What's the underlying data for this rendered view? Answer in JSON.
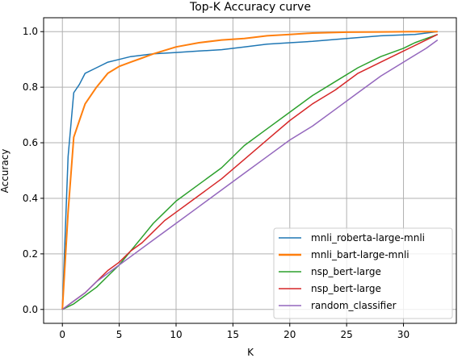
{
  "chart_data": {
    "type": "line",
    "title": "Top-K Accuracy curve",
    "xlabel": "K",
    "ylabel": "Accuracy",
    "xlim": [
      -1.65,
      34.65
    ],
    "ylim": [
      -0.05,
      1.05
    ],
    "xticks": [
      0,
      5,
      10,
      15,
      20,
      25,
      30
    ],
    "yticks": [
      0.0,
      0.2,
      0.4,
      0.6,
      0.8,
      1.0
    ],
    "xtick_labels": [
      "0",
      "5",
      "10",
      "15",
      "20",
      "25",
      "30"
    ],
    "ytick_labels": [
      "0.0",
      "0.2",
      "0.4",
      "0.6",
      "0.8",
      "1.0"
    ],
    "grid": true,
    "legend_position": "lower-right",
    "series": [
      {
        "name": "mnli_roberta-large-mnli",
        "color": "#1f77b4",
        "x": [
          0,
          0.5,
          1,
          1.5,
          2,
          3,
          4,
          5,
          6,
          7,
          8,
          10,
          12,
          14,
          16,
          18,
          20,
          22,
          25,
          28,
          31,
          33
        ],
        "y": [
          0.0,
          0.55,
          0.78,
          0.81,
          0.85,
          0.87,
          0.89,
          0.9,
          0.91,
          0.915,
          0.92,
          0.925,
          0.93,
          0.935,
          0.945,
          0.955,
          0.96,
          0.965,
          0.975,
          0.985,
          0.99,
          1.0
        ]
      },
      {
        "name": "mnli_bart-large-mnli",
        "color": "#ff7f0e",
        "x": [
          0,
          0.5,
          1,
          1.5,
          2,
          3,
          4,
          5,
          6,
          7,
          8,
          10,
          12,
          14,
          16,
          18,
          20,
          22,
          25,
          28,
          31,
          33
        ],
        "y": [
          0.0,
          0.35,
          0.62,
          0.68,
          0.74,
          0.8,
          0.85,
          0.875,
          0.89,
          0.905,
          0.92,
          0.945,
          0.96,
          0.97,
          0.975,
          0.985,
          0.99,
          0.995,
          0.998,
          0.999,
          1.0,
          1.0
        ]
      },
      {
        "name": "nsp_bert-large",
        "color": "#2ca02c",
        "x": [
          0,
          1,
          2,
          3,
          4,
          5,
          6,
          7,
          8,
          9,
          10,
          12,
          14,
          16,
          18,
          20,
          22,
          24,
          26,
          28,
          30,
          31,
          32,
          33
        ],
        "y": [
          0.0,
          0.02,
          0.05,
          0.08,
          0.12,
          0.16,
          0.21,
          0.26,
          0.31,
          0.35,
          0.39,
          0.45,
          0.51,
          0.59,
          0.65,
          0.71,
          0.77,
          0.82,
          0.87,
          0.91,
          0.94,
          0.96,
          0.975,
          0.99
        ]
      },
      {
        "name": "nsp_bert-large",
        "color": "#d62728",
        "x": [
          0,
          1,
          2,
          3,
          4,
          5,
          6,
          7,
          8,
          9,
          10,
          12,
          14,
          16,
          18,
          20,
          22,
          24,
          26,
          28,
          30,
          32,
          33
        ],
        "y": [
          0.0,
          0.03,
          0.06,
          0.1,
          0.14,
          0.17,
          0.21,
          0.24,
          0.28,
          0.32,
          0.35,
          0.41,
          0.47,
          0.54,
          0.61,
          0.68,
          0.74,
          0.79,
          0.85,
          0.89,
          0.93,
          0.97,
          0.99
        ]
      },
      {
        "name": "random_classifier",
        "color": "#9467bd",
        "x": [
          0,
          1,
          2,
          3,
          4,
          5,
          6,
          8,
          10,
          12,
          14,
          16,
          18,
          20,
          22,
          24,
          26,
          28,
          30,
          32,
          33
        ],
        "y": [
          0.0,
          0.03,
          0.06,
          0.1,
          0.13,
          0.16,
          0.19,
          0.25,
          0.31,
          0.37,
          0.43,
          0.49,
          0.55,
          0.61,
          0.66,
          0.72,
          0.78,
          0.84,
          0.89,
          0.94,
          0.97
        ]
      }
    ]
  }
}
